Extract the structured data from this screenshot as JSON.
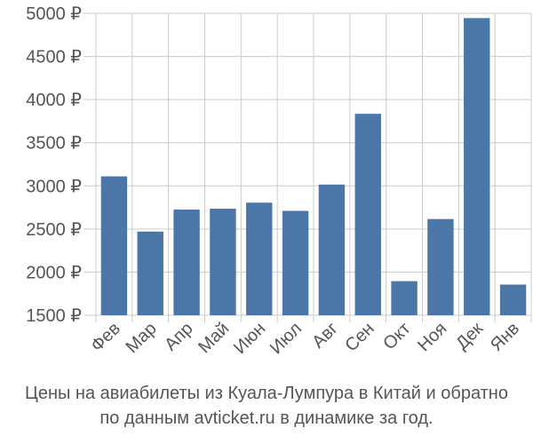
{
  "caption": {
    "line1": "Цены на авиабилеты из Куала-Лумпура в Китай и обратно",
    "line2": "по данным avticket.ru в динамике за год."
  },
  "chart_data": {
    "type": "bar",
    "categories": [
      "Фев",
      "Мар",
      "Апр",
      "Май",
      "Июн",
      "Июл",
      "Авг",
      "Сен",
      "Окт",
      "Ноя",
      "Дек",
      "Янв"
    ],
    "values": [
      3110,
      2470,
      2725,
      2735,
      2805,
      2710,
      3015,
      3835,
      1895,
      2615,
      4945,
      1855
    ],
    "y_ticks": [
      1500,
      2000,
      2500,
      3000,
      3500,
      4000,
      4500,
      5000
    ],
    "y_tick_labels": [
      "1500 ₽",
      "2000 ₽",
      "2500 ₽",
      "3000 ₽",
      "3500 ₽",
      "4000 ₽",
      "4500 ₽",
      "5000 ₽"
    ],
    "ylim": [
      1500,
      5000
    ],
    "grid": true,
    "colors": {
      "bar": "#4a77a8",
      "grid": "#cccccc",
      "text": "#555555"
    }
  }
}
